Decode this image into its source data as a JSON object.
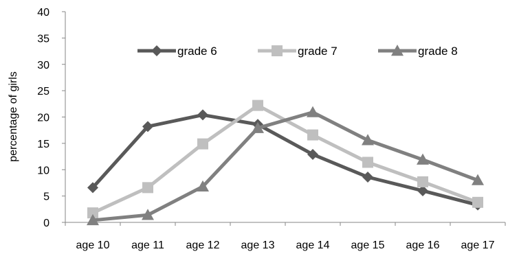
{
  "chart_data": {
    "type": "line",
    "title": "",
    "xlabel": "",
    "ylabel": "percentage of girls",
    "ylim": [
      0,
      40
    ],
    "yticks": [
      0,
      5,
      10,
      15,
      20,
      25,
      30,
      35,
      40
    ],
    "categories": [
      "age 10",
      "age 11",
      "age 12",
      "age 13",
      "age 14",
      "age 15",
      "age 16",
      "age 17"
    ],
    "grid": false,
    "legend": "top-center",
    "series": [
      {
        "name": "grade 6",
        "color": "#595959",
        "marker": "diamond",
        "values": [
          6.6,
          18.2,
          20.4,
          18.6,
          12.9,
          8.6,
          6.0,
          3.3
        ]
      },
      {
        "name": "grade 7",
        "color": "#bfbfbf",
        "marker": "square",
        "values": [
          1.8,
          6.6,
          14.9,
          22.2,
          16.6,
          11.4,
          7.7,
          3.8
        ]
      },
      {
        "name": "grade 8",
        "color": "#808080",
        "marker": "triangle",
        "values": [
          0.4,
          1.4,
          6.8,
          17.9,
          20.9,
          15.6,
          11.9,
          8.0
        ]
      }
    ]
  }
}
